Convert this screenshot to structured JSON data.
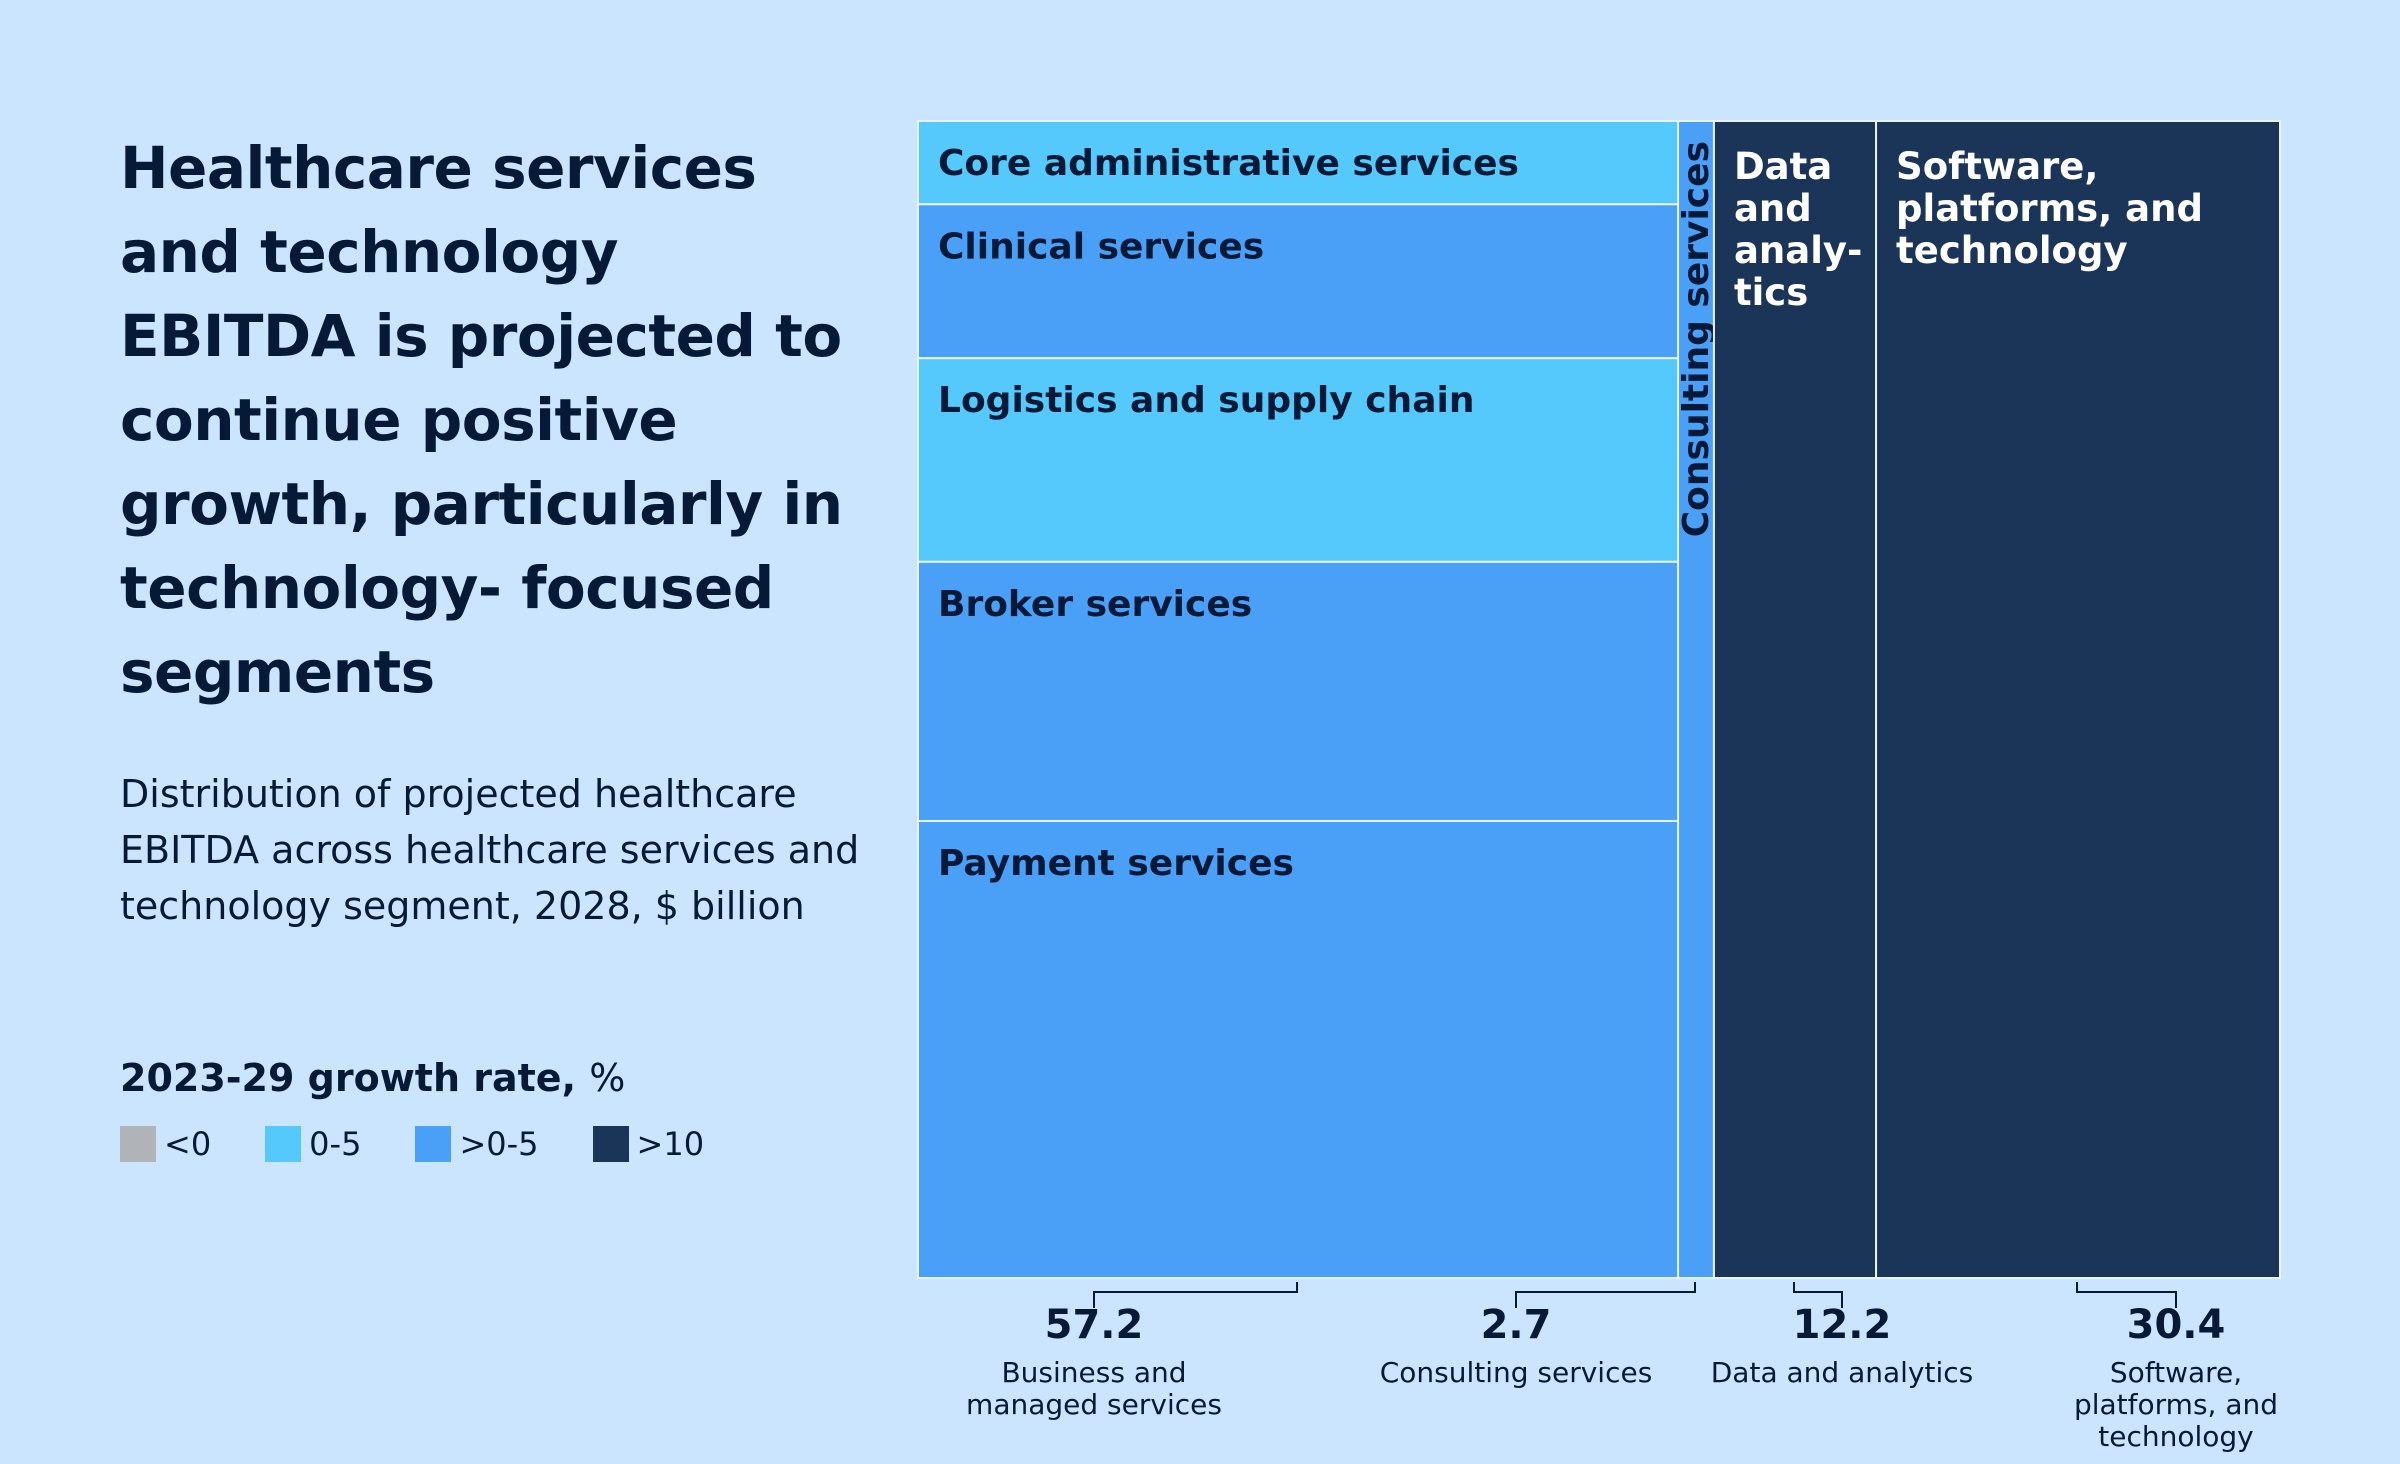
{
  "title": "Healthcare services and technology EBITDA is projected to continue positive growth, particularly in technology- focused segments",
  "subtitle": "Distribution of projected healthcare EBITDA across healthcare services and technology segment, 2028, $ billion",
  "legend": {
    "title": "2023-29 growth rate,",
    "unit": "%",
    "items": [
      {
        "label": "<0",
        "color": "#b0b4b8"
      },
      {
        "label": "0-5",
        "color": "#55c9fc"
      },
      {
        "label": ">0-5",
        "color": "#4a9ff7"
      },
      {
        "label": ">10",
        "color": "#1b3559"
      }
    ]
  },
  "chart_data": {
    "type": "treemap",
    "unit": "$ billion",
    "segments": [
      {
        "name": "Business and managed services",
        "value": 57.2,
        "children": [
          {
            "name": "Core administrative services",
            "growth": "0-5"
          },
          {
            "name": "Clinical services",
            "growth": ">0-5"
          },
          {
            "name": "Logistics and supply chain",
            "growth": "0-5"
          },
          {
            "name": "Broker services",
            "growth": ">0-5"
          },
          {
            "name": "Payment services",
            "growth": ">0-5"
          }
        ]
      },
      {
        "name": "Consulting services",
        "value": 2.7,
        "block_label": "Consulting services",
        "growth": ">0-5"
      },
      {
        "name": "Data and analytics",
        "value": 12.2,
        "block_label": "Data and analy- tics",
        "growth": ">10"
      },
      {
        "name": "Software, platforms, and technology",
        "value": 30.4,
        "block_label": "Software, platforms, and technology",
        "growth": ">10"
      }
    ]
  }
}
